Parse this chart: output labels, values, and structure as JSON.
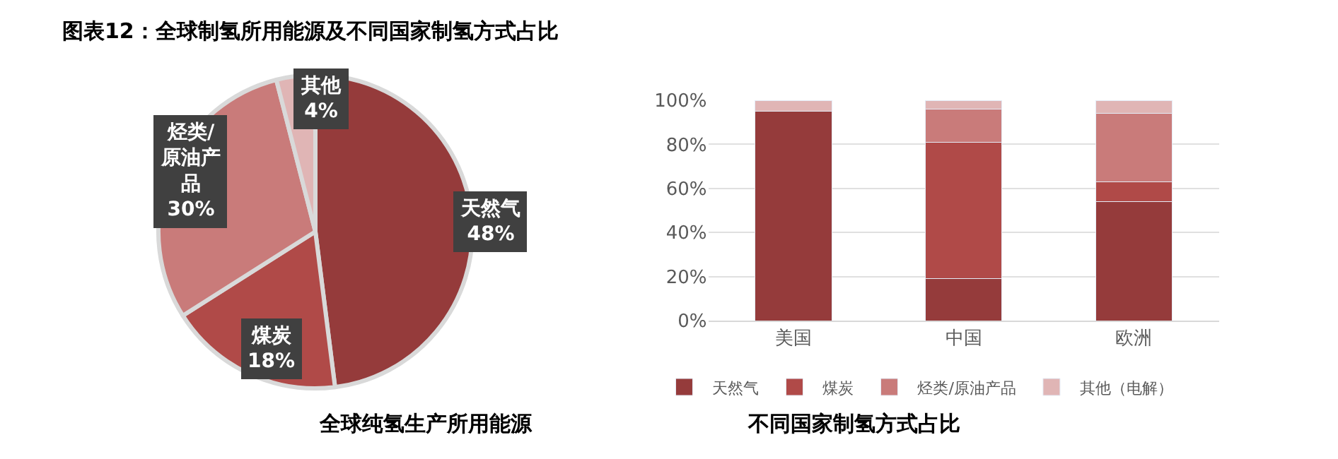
{
  "chart_data": [
    {
      "type": "pie",
      "title": "图表12：全球制氢所用能源及不同国家制氢方式占比",
      "categories": [
        "天然气",
        "煤炭",
        "烃类/原油产品",
        "其他"
      ],
      "values": [
        48,
        18,
        30,
        4
      ],
      "value_labels": [
        "48%",
        "18%",
        "30%",
        "4%"
      ],
      "colors": [
        "#953b3b",
        "#b04a48",
        "#c97b7a",
        "#e0b5b5"
      ],
      "annotations": [
        "全球纯氢生产所用能源"
      ],
      "legend": false
    },
    {
      "type": "bar",
      "stacked": true,
      "categories": [
        "美国",
        "中国",
        "欧洲"
      ],
      "series": [
        {
          "name": "天然气",
          "color": "#953b3b",
          "values": [
            95,
            19,
            54
          ]
        },
        {
          "name": "煤炭",
          "color": "#b04a48",
          "values": [
            0,
            62,
            9
          ]
        },
        {
          "name": "烃类/原油产品",
          "color": "#c97b7a",
          "values": [
            0,
            15,
            31
          ]
        },
        {
          "name": "其他（电解）",
          "color": "#e0b5b5",
          "values": [
            5,
            4,
            6
          ]
        }
      ],
      "ylim": [
        0,
        100
      ],
      "yticks": [
        {
          "value": 0,
          "label": "0%"
        },
        {
          "value": 20,
          "label": "20%"
        },
        {
          "value": 40,
          "label": "40%"
        },
        {
          "value": 60,
          "label": "60%"
        },
        {
          "value": 80,
          "label": "80%"
        },
        {
          "value": 100,
          "label": "100%"
        }
      ],
      "grid": "y",
      "legend": "bottom",
      "annotations": [
        "不同国家制氢方式占比"
      ]
    }
  ]
}
